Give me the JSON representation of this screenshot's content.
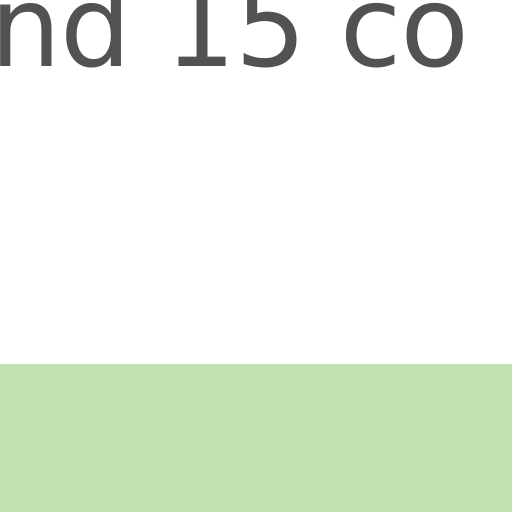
{
  "content": {
    "visible_text": "nd 15 co"
  },
  "colors": {
    "text": "#525252",
    "background": "#ffffff",
    "band": "#c1e1b0"
  }
}
